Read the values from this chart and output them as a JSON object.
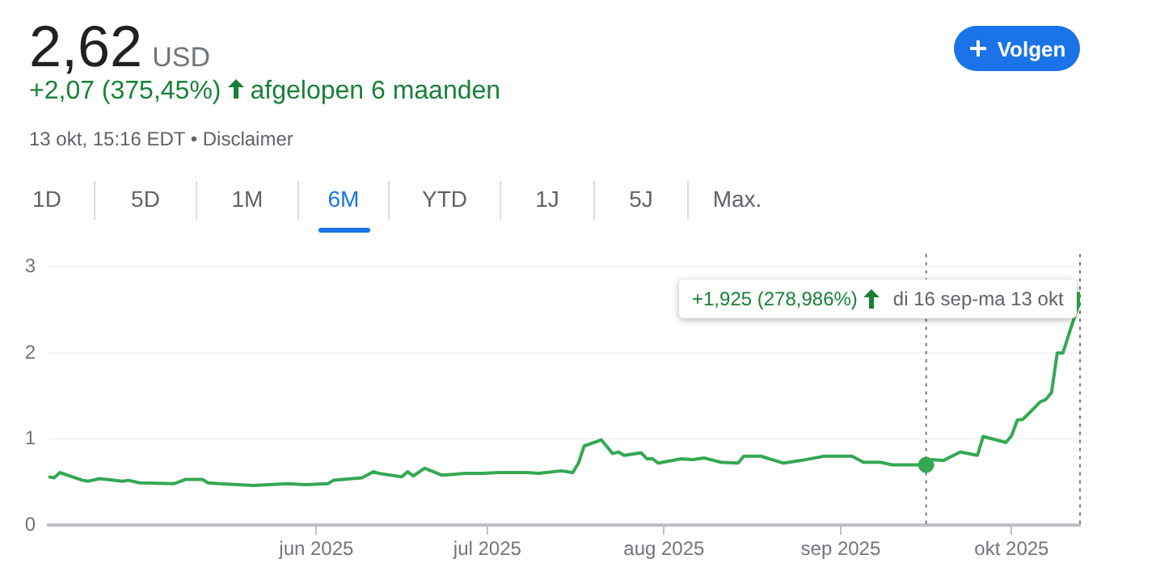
{
  "chart_data": {
    "type": "line",
    "title": "2,62",
    "annotations": [
      "USD",
      "+2,07 (375,45%)",
      "afgelopen 6 maanden",
      "13 okt, 15:16 EDT • Disclaimer",
      "Volgen",
      "1D",
      "5D",
      "1M",
      "6M",
      "YTD",
      "1J",
      "5J",
      "Max.",
      "+1,925 (278,986%)",
      "di 16 sep-ma 13 okt"
    ],
    "series": [
      {
        "type": "line",
        "color": "#34a853",
        "x": [
          "2025-04-15",
          "2025-04-16",
          "2025-04-17",
          "2025-04-21",
          "2025-04-22",
          "2025-04-24",
          "2025-04-28",
          "2025-04-29",
          "2025-05-01",
          "2025-05-07",
          "2025-05-09",
          "2025-05-12",
          "2025-05-13",
          "2025-05-15",
          "2025-05-21",
          "2025-05-27",
          "2025-05-30",
          "2025-06-03",
          "2025-06-04",
          "2025-06-09",
          "2025-06-11",
          "2025-06-12",
          "2025-06-13",
          "2025-06-16",
          "2025-06-17",
          "2025-06-18",
          "2025-06-20",
          "2025-06-23",
          "2025-06-25",
          "2025-06-27",
          "2025-06-30",
          "2025-07-03",
          "2025-07-08",
          "2025-07-10",
          "2025-07-14",
          "2025-07-16",
          "2025-07-17",
          "2025-07-18",
          "2025-07-21",
          "2025-07-23",
          "2025-07-24",
          "2025-07-25",
          "2025-07-28",
          "2025-07-29",
          "2025-07-30",
          "2025-07-31",
          "2025-08-04",
          "2025-08-06",
          "2025-08-08",
          "2025-08-11",
          "2025-08-14",
          "2025-08-15",
          "2025-08-18",
          "2025-08-22",
          "2025-08-25",
          "2025-08-29",
          "2025-09-03",
          "2025-09-05",
          "2025-09-08",
          "2025-09-10",
          "2025-09-12",
          "2025-09-16",
          "2025-09-17",
          "2025-09-19",
          "2025-09-22",
          "2025-09-25",
          "2025-09-26",
          "2025-09-30",
          "2025-10-01",
          "2025-10-02",
          "2025-10-03",
          "2025-10-06",
          "2025-10-07",
          "2025-10-08",
          "2025-10-09",
          "2025-10-10",
          "2025-10-13"
        ],
        "values": [
          0.56,
          0.55,
          0.61,
          0.52,
          0.51,
          0.54,
          0.51,
          0.52,
          0.49,
          0.48,
          0.53,
          0.53,
          0.49,
          0.48,
          0.46,
          0.48,
          0.47,
          0.48,
          0.52,
          0.55,
          0.62,
          0.6,
          0.59,
          0.56,
          0.62,
          0.57,
          0.66,
          0.58,
          0.59,
          0.6,
          0.6,
          0.61,
          0.61,
          0.6,
          0.63,
          0.61,
          0.72,
          0.92,
          0.99,
          0.83,
          0.85,
          0.81,
          0.84,
          0.77,
          0.77,
          0.72,
          0.77,
          0.76,
          0.78,
          0.73,
          0.72,
          0.8,
          0.8,
          0.72,
          0.75,
          0.8,
          0.8,
          0.73,
          0.73,
          0.7,
          0.7,
          0.7,
          0.76,
          0.75,
          0.85,
          0.81,
          1.03,
          0.96,
          1.04,
          1.22,
          1.23,
          1.43,
          1.46,
          1.54,
          2.0,
          2.0,
          2.62
        ]
      },
      {
        "type": "scatter",
        "color": "#34a853",
        "x": [
          "2025-09-16",
          "2025-10-13"
        ],
        "values": [
          0.7,
          2.62
        ]
      }
    ],
    "xlim": [
      "2025-04-15",
      "2025-10-13"
    ],
    "xticks": [
      {
        "value": "2025-06-01",
        "label": "jun 2025"
      },
      {
        "value": "2025-07-01",
        "label": "jul 2025"
      },
      {
        "value": "2025-08-01",
        "label": "aug 2025"
      },
      {
        "value": "2025-09-01",
        "label": "sep 2025"
      },
      {
        "value": "2025-10-01",
        "label": "okt 2025"
      }
    ],
    "ylim": [
      0,
      3
    ],
    "yticks": [
      0,
      1,
      2,
      3
    ],
    "grid": "y",
    "legend": false,
    "ref_lines": [
      {
        "axis": "x",
        "value": "2025-09-16",
        "color": "#757575",
        "line_style": "dotted"
      },
      {
        "axis": "x",
        "value": "2025-10-13",
        "color": "#757575",
        "line_style": "dotted"
      }
    ]
  }
}
